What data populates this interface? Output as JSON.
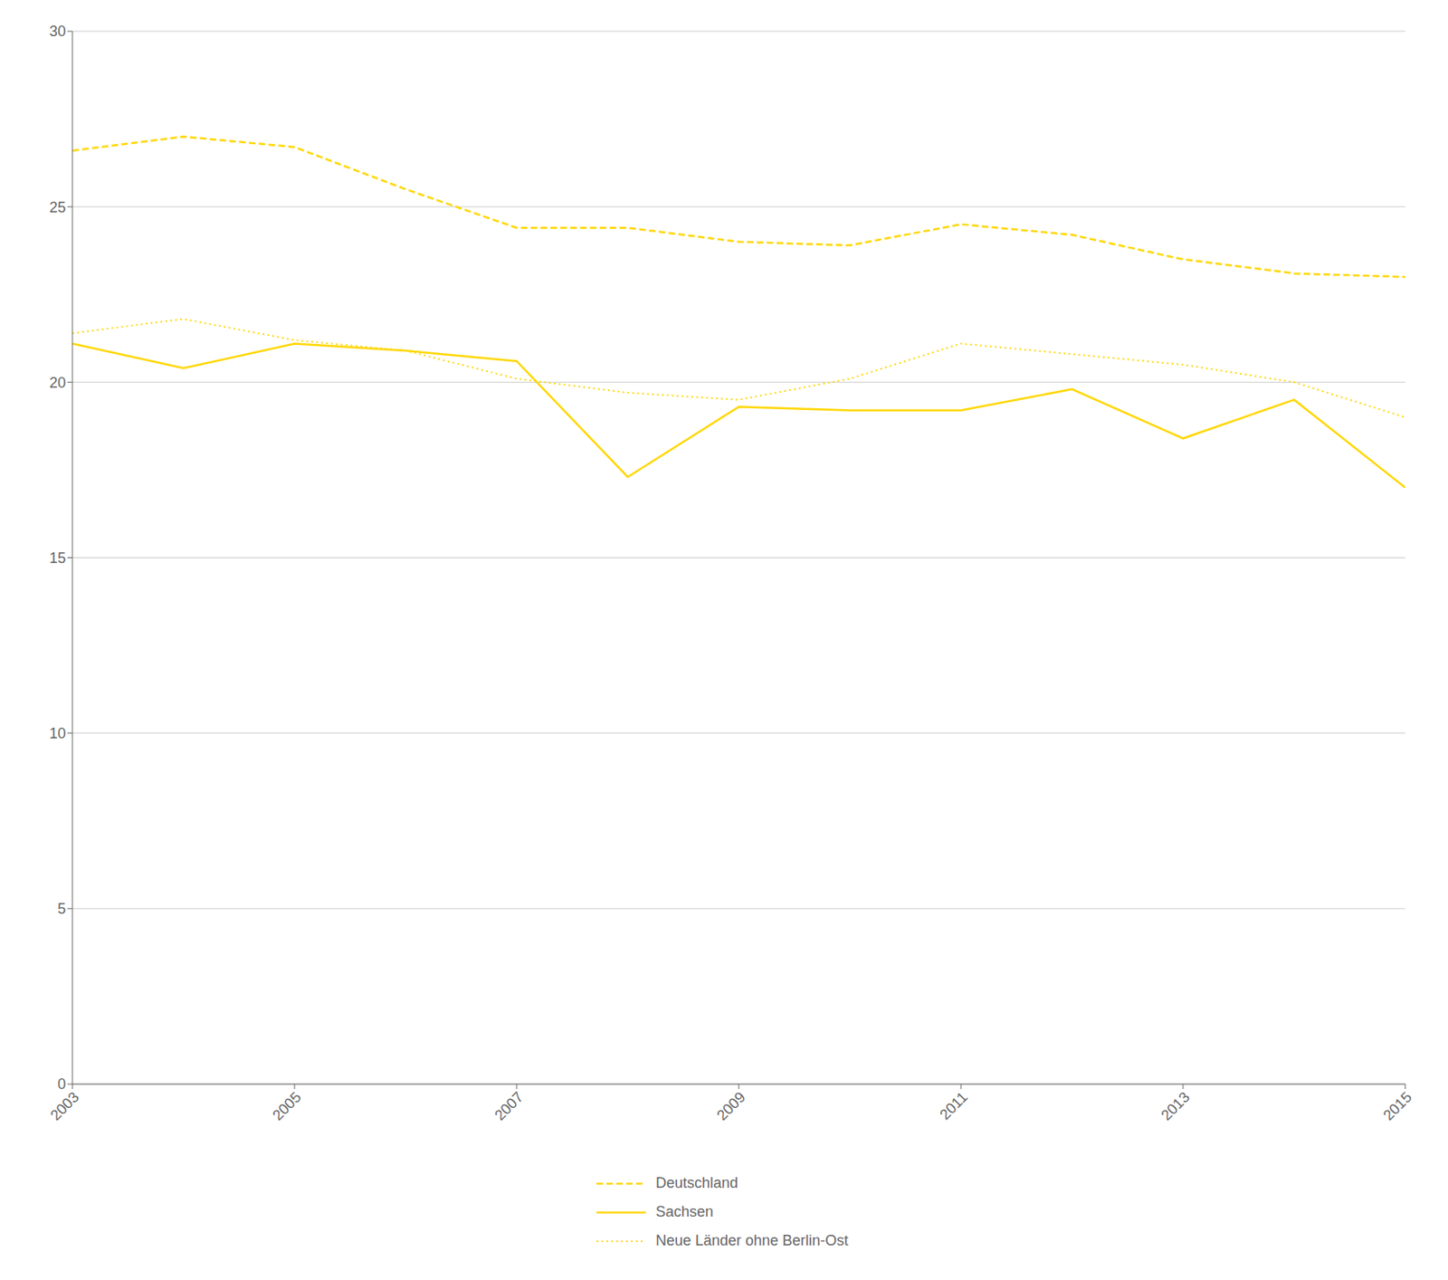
{
  "chart_data": {
    "type": "line",
    "x": [
      2003,
      2004,
      2005,
      2006,
      2007,
      2008,
      2009,
      2010,
      2011,
      2012,
      2013,
      2014,
      2015
    ],
    "series": [
      {
        "name": "Deutschland",
        "color": "#FFD700",
        "line_style": "dashed",
        "values": [
          26.6,
          27.0,
          26.7,
          25.5,
          24.4,
          24.4,
          24.0,
          23.9,
          24.5,
          24.2,
          23.5,
          23.1,
          23.0
        ]
      },
      {
        "name": "Sachsen",
        "color": "#FFD700",
        "line_style": "solid",
        "values": [
          21.1,
          20.4,
          21.1,
          20.9,
          20.6,
          17.3,
          19.3,
          19.2,
          19.2,
          19.8,
          18.4,
          19.5,
          17.0
        ]
      },
      {
        "name": "Neue Länder ohne Berlin-Ost",
        "color": "#FFD700",
        "line_style": "dotted",
        "values": [
          21.4,
          21.8,
          21.2,
          20.9,
          20.1,
          19.7,
          19.5,
          20.1,
          21.1,
          20.8,
          20.5,
          20.0,
          19.0
        ]
      }
    ],
    "xlim": [
      2003,
      2015
    ],
    "xticks": [
      2003,
      2005,
      2007,
      2009,
      2011,
      2013,
      2015
    ],
    "ylim": [
      0,
      30
    ],
    "yticks": [
      0,
      5,
      10,
      15,
      20,
      25,
      30
    ],
    "grid": "y",
    "legend": "bottom"
  }
}
